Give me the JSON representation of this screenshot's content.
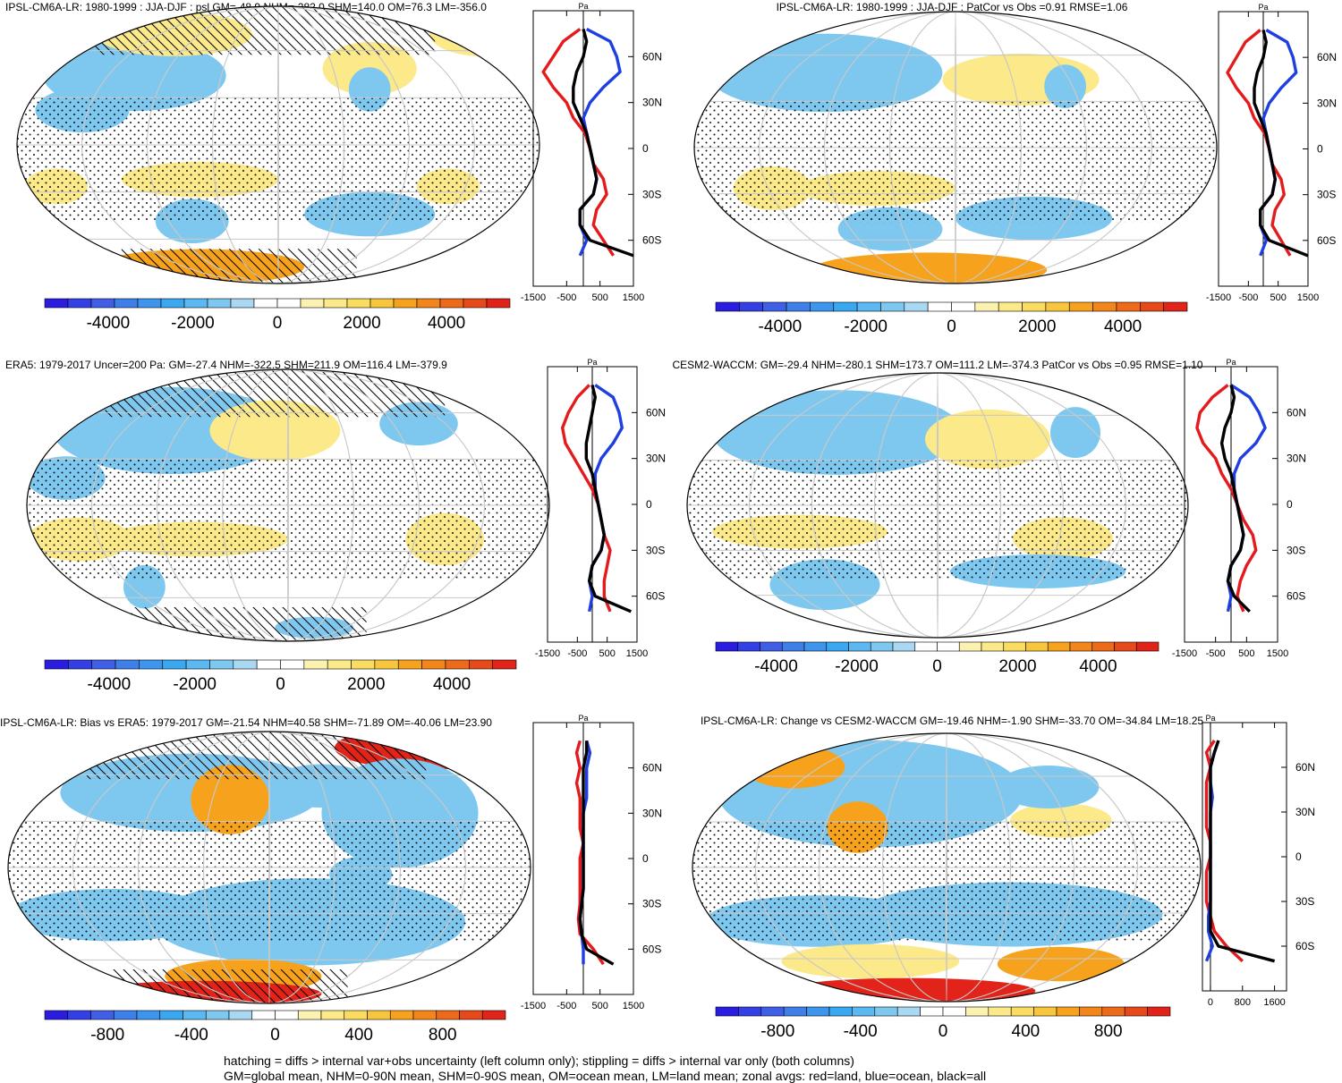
{
  "figure": {
    "footer_lines": [
      "hatching = diffs > internal var+obs uncertainty (left column only); stippling = diffs > internal var only (both columns)",
      "GM=global mean, NHM=0-90N mean, SHM=0-90S mean, OM=ocean mean, LM=land mean; zonal avgs: red=land, blue=ocean, black=all"
    ],
    "colors": {
      "land_line": "#e41a1c",
      "ocean_line": "#1f3fe0",
      "all_line": "#000000",
      "map_blue": "#7ec8f0",
      "map_blue_dark": "#4fa8ea",
      "map_yellow": "#fbe98a",
      "map_orange": "#f6a21c",
      "map_red": "#e2231a"
    }
  },
  "chart_data": [
    {
      "type": "heatmap",
      "panel": "top-left",
      "title": "IPSL-CM6A-LR: 1980-1999 : JJA-DJF : psl GM=-48.9 NHM=-282.0 SHM=140.0 OM=76.3 LM=-356.0",
      "units": "Pa",
      "colorbar": {
        "ticks": [
          "-4000",
          "-2000",
          "0",
          "2000",
          "4000"
        ],
        "range": [
          -5500,
          5500
        ]
      },
      "profile": {
        "xticks": [
          "-1500",
          "-500",
          "500",
          "1500"
        ],
        "xlim": [
          -1500,
          1500
        ],
        "lat_labels": [
          "60N",
          "30N",
          "0",
          "30S",
          "60S"
        ],
        "series": [
          {
            "name": "land",
            "lat": [
              78,
              70,
              60,
              50,
              40,
              30,
              20,
              10,
              0,
              -10,
              -20,
              -30,
              -40,
              -50,
              -60,
              -70
            ],
            "value": [
              -100,
              -600,
              -900,
              -1200,
              -900,
              -500,
              -300,
              50,
              200,
              300,
              600,
              700,
              400,
              300,
              600,
              900
            ]
          },
          {
            "name": "ocean",
            "lat": [
              78,
              70,
              60,
              50,
              40,
              30,
              20,
              10,
              0,
              -10,
              -20,
              -30,
              -40,
              -50,
              -60,
              -70
            ],
            "value": [
              100,
              800,
              1000,
              1100,
              600,
              200,
              0,
              100,
              200,
              300,
              400,
              300,
              -100,
              -100,
              100,
              -100
            ]
          },
          {
            "name": "all",
            "lat": [
              78,
              70,
              60,
              50,
              40,
              30,
              20,
              10,
              0,
              -10,
              -20,
              -30,
              -40,
              -50,
              -60,
              -70
            ],
            "value": [
              0,
              100,
              0,
              -200,
              -300,
              -300,
              -100,
              100,
              200,
              300,
              400,
              300,
              -100,
              -100,
              200,
              1500
            ]
          }
        ]
      }
    },
    {
      "type": "heatmap",
      "panel": "top-right",
      "title": "IPSL-CM6A-LR: 1980-1999 : JJA-DJF : PatCor vs Obs =0.91 RMSE=1.06",
      "units": "Pa",
      "colorbar": {
        "ticks": [
          "-4000",
          "-2000",
          "0",
          "2000",
          "4000"
        ],
        "range": [
          -5500,
          5500
        ]
      },
      "profile": {
        "xticks": [
          "-1500",
          "-500",
          "500",
          "1500"
        ],
        "xlim": [
          -1500,
          1500
        ],
        "lat_labels": [
          "60N",
          "30N",
          "0",
          "30S",
          "60S"
        ],
        "series": [
          {
            "name": "land",
            "lat": [
              78,
              70,
              60,
              50,
              40,
              30,
              20,
              10,
              0,
              -10,
              -20,
              -30,
              -40,
              -50,
              -60,
              -70
            ],
            "value": [
              -100,
              -600,
              -900,
              -1200,
              -900,
              -500,
              -300,
              50,
              200,
              300,
              600,
              700,
              400,
              300,
              600,
              900
            ]
          },
          {
            "name": "ocean",
            "lat": [
              78,
              70,
              60,
              50,
              40,
              30,
              20,
              10,
              0,
              -10,
              -20,
              -30,
              -40,
              -50,
              -60,
              -70
            ],
            "value": [
              100,
              800,
              1000,
              1100,
              600,
              200,
              0,
              100,
              200,
              300,
              400,
              300,
              -100,
              -100,
              100,
              -100
            ]
          },
          {
            "name": "all",
            "lat": [
              78,
              70,
              60,
              50,
              40,
              30,
              20,
              10,
              0,
              -10,
              -20,
              -30,
              -40,
              -50,
              -60,
              -70
            ],
            "value": [
              0,
              100,
              0,
              -200,
              -300,
              -300,
              -100,
              100,
              200,
              300,
              400,
              300,
              -100,
              -100,
              200,
              1500
            ]
          }
        ]
      }
    },
    {
      "type": "heatmap",
      "panel": "middle-left",
      "title": "ERA5: 1979-2017 Uncer=200 Pa: GM=-27.4 NHM=-322.5 SHM=211.9 OM=116.4 LM=-379.9",
      "units": "Pa",
      "colorbar": {
        "ticks": [
          "-4000",
          "-2000",
          "0",
          "2000",
          "4000"
        ],
        "range": [
          -5500,
          5500
        ]
      },
      "profile": {
        "xticks": [
          "-1500",
          "-500",
          "500",
          "1500"
        ],
        "xlim": [
          -1500,
          1500
        ],
        "lat_labels": [
          "60N",
          "30N",
          "0",
          "30S",
          "60S"
        ],
        "series": [
          {
            "name": "land",
            "lat": [
              78,
              70,
              60,
              50,
              40,
              30,
              20,
              10,
              0,
              -10,
              -20,
              -30,
              -40,
              -50,
              -60,
              -70
            ],
            "value": [
              -100,
              -500,
              -800,
              -1000,
              -900,
              -600,
              -300,
              0,
              200,
              300,
              400,
              600,
              500,
              400,
              400,
              600
            ]
          },
          {
            "name": "ocean",
            "lat": [
              78,
              70,
              60,
              50,
              40,
              30,
              20,
              10,
              0,
              -10,
              -20,
              -30,
              -40,
              -50,
              -60,
              -70
            ],
            "value": [
              100,
              700,
              900,
              1000,
              700,
              300,
              100,
              100,
              200,
              300,
              400,
              300,
              0,
              -100,
              0,
              -100
            ]
          },
          {
            "name": "all",
            "lat": [
              78,
              70,
              60,
              50,
              40,
              30,
              20,
              10,
              0,
              -10,
              -20,
              -30,
              -40,
              -50,
              -60,
              -70
            ],
            "value": [
              0,
              100,
              0,
              -100,
              -200,
              -200,
              0,
              100,
              200,
              300,
              400,
              300,
              0,
              -100,
              100,
              1300
            ]
          }
        ]
      }
    },
    {
      "type": "heatmap",
      "panel": "middle-right",
      "title": "CESM2-WACCM: GM=-29.4 NHM=-280.1 SHM=173.7 OM=111.2 LM=-374.3 PatCor vs Obs =0.95 RMSE=1.10",
      "units": "Pa",
      "colorbar": {
        "ticks": [
          "-4000",
          "-2000",
          "0",
          "2000",
          "4000"
        ],
        "range": [
          -5500,
          5500
        ]
      },
      "profile": {
        "xticks": [
          "-1500",
          "-500",
          "500",
          "1500"
        ],
        "xlim": [
          -1500,
          1500
        ],
        "lat_labels": [
          "60N",
          "30N",
          "0",
          "30S",
          "60S"
        ],
        "series": [
          {
            "name": "land",
            "lat": [
              78,
              70,
              60,
              50,
              40,
              30,
              20,
              10,
              0,
              -10,
              -20,
              -30,
              -40,
              -50,
              -60,
              -70
            ],
            "value": [
              -100,
              -600,
              -1000,
              -1100,
              -900,
              -500,
              -300,
              0,
              200,
              400,
              700,
              800,
              500,
              300,
              200,
              400
            ]
          },
          {
            "name": "ocean",
            "lat": [
              78,
              70,
              60,
              50,
              40,
              30,
              20,
              10,
              0,
              -10,
              -20,
              -30,
              -40,
              -50,
              -60,
              -70
            ],
            "value": [
              0,
              600,
              900,
              1100,
              800,
              300,
              100,
              100,
              200,
              300,
              400,
              300,
              0,
              -100,
              0,
              -100
            ]
          },
          {
            "name": "all",
            "lat": [
              78,
              70,
              60,
              50,
              40,
              30,
              20,
              10,
              0,
              -10,
              -20,
              -30,
              -40,
              -50,
              -60,
              -70
            ],
            "value": [
              0,
              100,
              0,
              -200,
              -300,
              -200,
              0,
              100,
              200,
              300,
              400,
              300,
              0,
              -100,
              100,
              600
            ]
          }
        ]
      }
    },
    {
      "type": "heatmap",
      "panel": "bottom-left",
      "title": "IPSL-CM6A-LR: Bias vs ERA5: 1979-2017 GM=-21.54 NHM=40.58 SHM=-71.89 OM=-40.06 LM=23.90",
      "units": "Pa",
      "colorbar": {
        "ticks": [
          "-800",
          "-400",
          "0",
          "400",
          "800"
        ],
        "range": [
          -1100,
          1100
        ]
      },
      "profile": {
        "xticks": [
          "-1500",
          "-500",
          "500",
          "1500"
        ],
        "xlim": [
          -1500,
          1500
        ],
        "lat_labels": [
          "60N",
          "30N",
          "0",
          "30S",
          "60S"
        ],
        "series": [
          {
            "name": "land",
            "lat": [
              78,
              70,
              60,
              50,
              40,
              30,
              20,
              10,
              0,
              -10,
              -20,
              -30,
              -40,
              -50,
              -60,
              -70
            ],
            "value": [
              -100,
              -200,
              -100,
              -200,
              -100,
              -100,
              -100,
              0,
              -100,
              -100,
              -100,
              -100,
              -150,
              -100,
              300,
              600
            ]
          },
          {
            "name": "ocean",
            "lat": [
              78,
              70,
              60,
              50,
              40,
              30,
              20,
              10,
              0,
              -10,
              -20,
              -30,
              -40,
              -50,
              -60,
              -70
            ],
            "value": [
              100,
              200,
              100,
              100,
              100,
              0,
              0,
              0,
              0,
              0,
              0,
              -50,
              -100,
              -50,
              0,
              0
            ]
          },
          {
            "name": "all",
            "lat": [
              78,
              70,
              60,
              50,
              40,
              30,
              20,
              10,
              0,
              -10,
              -20,
              -30,
              -40,
              -50,
              -60,
              -70
            ],
            "value": [
              100,
              100,
              0,
              0,
              0,
              0,
              0,
              0,
              0,
              0,
              0,
              -50,
              -100,
              -50,
              100,
              900
            ]
          }
        ]
      }
    },
    {
      "type": "heatmap",
      "panel": "bottom-right",
      "title": "IPSL-CM6A-LR: Change vs CESM2-WACCM GM=-19.46 NHM=-1.90 SHM=-33.70 OM=-34.84 LM=18.25",
      "units": "Pa",
      "colorbar": {
        "ticks": [
          "-800",
          "-400",
          "0",
          "400",
          "800"
        ],
        "range": [
          -1100,
          1100
        ]
      },
      "profile": {
        "xticks": [
          "0",
          "800",
          "1600"
        ],
        "xlim": [
          -200,
          1900
        ],
        "lat_labels": [
          "60N",
          "30N",
          "0",
          "30S",
          "60S"
        ],
        "series": [
          {
            "name": "land",
            "lat": [
              78,
              70,
              60,
              50,
              40,
              30,
              20,
              10,
              0,
              -10,
              -20,
              -30,
              -40,
              -50,
              -60,
              -70
            ],
            "value": [
              100,
              -100,
              0,
              -100,
              -100,
              -100,
              -100,
              0,
              0,
              -100,
              -100,
              -100,
              0,
              100,
              400,
              800
            ]
          },
          {
            "name": "ocean",
            "lat": [
              78,
              70,
              60,
              50,
              40,
              30,
              20,
              10,
              0,
              -10,
              -20,
              -30,
              -40,
              -50,
              -60,
              -70
            ],
            "value": [
              200,
              100,
              0,
              0,
              50,
              0,
              0,
              0,
              0,
              0,
              0,
              0,
              -50,
              -50,
              50,
              -100
            ]
          },
          {
            "name": "all",
            "lat": [
              78,
              70,
              60,
              50,
              40,
              30,
              20,
              10,
              0,
              -10,
              -20,
              -30,
              -40,
              -50,
              -60,
              -70
            ],
            "value": [
              200,
              100,
              0,
              0,
              0,
              0,
              0,
              0,
              0,
              0,
              0,
              0,
              0,
              0,
              200,
              1600
            ]
          }
        ]
      }
    }
  ]
}
